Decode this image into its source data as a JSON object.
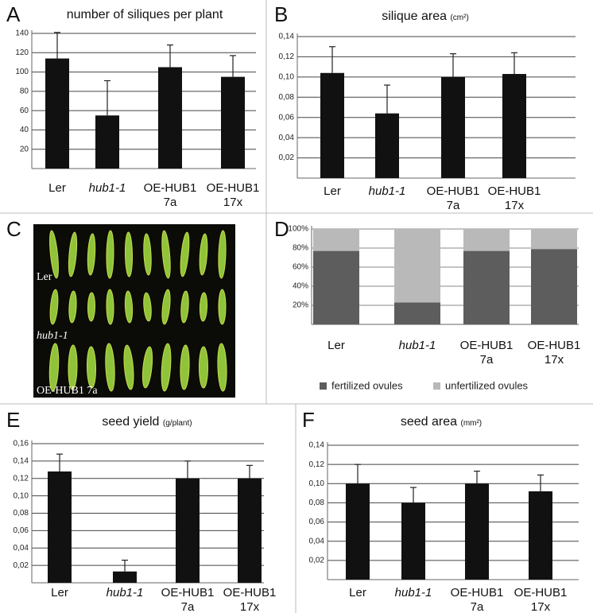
{
  "chart_data": [
    {
      "panel": "A",
      "type": "bar",
      "title": "number of siliques per plant",
      "categories": [
        "Ler",
        "hub1-1",
        "OE-HUB1 7a",
        "OE-HUB1 17x"
      ],
      "values": [
        114,
        55,
        105,
        95
      ],
      "errors": [
        27,
        36,
        23,
        22
      ],
      "color": "#111111",
      "ylim": [
        0,
        140
      ],
      "yticks": [
        20,
        40,
        60,
        80,
        100,
        120,
        140
      ],
      "grid": true
    },
    {
      "panel": "B",
      "type": "bar",
      "title": "silique area",
      "unit": "(cm²)",
      "categories": [
        "Ler",
        "hub1-1",
        "OE-HUB1 7a",
        "OE-HUB1 17x"
      ],
      "values": [
        0.104,
        0.064,
        0.1,
        0.103
      ],
      "errors": [
        0.026,
        0.028,
        0.023,
        0.021
      ],
      "color": "#111111",
      "ylim": [
        0,
        0.14
      ],
      "yticks": [
        {
          "value": 0.02,
          "label": "0,02"
        },
        {
          "value": 0.04,
          "label": "0,04"
        },
        {
          "value": 0.06,
          "label": "0,06"
        },
        {
          "value": 0.08,
          "label": "0,08"
        },
        {
          "value": 0.1,
          "label": "0,10"
        },
        {
          "value": 0.12,
          "label": "0,12"
        },
        {
          "value": 0.14,
          "label": "0,14"
        }
      ],
      "grid": true
    },
    {
      "panel": "D",
      "type": "stacked_bar",
      "categories": [
        "Ler",
        "hub1-1",
        "OE-HUB1 7a",
        "OE-HUB1 17x"
      ],
      "series": [
        {
          "name": "fertilized ovules",
          "color": "#5d5d5d",
          "values": [
            77,
            23,
            77,
            79
          ]
        },
        {
          "name": "unfertilized ovules",
          "color": "#b9b9b9",
          "values": [
            23,
            77,
            23,
            21
          ]
        }
      ],
      "ylim": [
        0,
        100
      ],
      "yticks": [
        {
          "value": 20,
          "label": "20%"
        },
        {
          "value": 40,
          "label": "40%"
        },
        {
          "value": 60,
          "label": "60%"
        },
        {
          "value": 80,
          "label": "80%"
        },
        {
          "value": 100,
          "label": "100%"
        }
      ],
      "grid": true,
      "legend": "bottom"
    },
    {
      "panel": "E",
      "type": "bar",
      "title": "seed yield",
      "unit": "(g/plant)",
      "categories": [
        "Ler",
        "hub1-1",
        "OE-HUB1 7a",
        "OE-HUB1 17x"
      ],
      "values": [
        0.128,
        0.013,
        0.12,
        0.12
      ],
      "errors": [
        0.02,
        0.013,
        0.02,
        0.015
      ],
      "color": "#111111",
      "ylim": [
        0,
        0.16
      ],
      "yticks": [
        {
          "value": 0.02,
          "label": "0,02"
        },
        {
          "value": 0.04,
          "label": "0,04"
        },
        {
          "value": 0.06,
          "label": "0,06"
        },
        {
          "value": 0.08,
          "label": "0,08"
        },
        {
          "value": 0.1,
          "label": "0,10"
        },
        {
          "value": 0.12,
          "label": "0,12"
        },
        {
          "value": 0.14,
          "label": "0,14"
        },
        {
          "value": 0.16,
          "label": "0,16"
        }
      ],
      "grid": true
    },
    {
      "panel": "F",
      "type": "bar",
      "title": "seed area",
      "unit": "(mm²)",
      "categories": [
        "Ler",
        "hub1-1",
        "OE-HUB1 7a",
        "OE-HUB1 17x"
      ],
      "values": [
        0.1,
        0.08,
        0.1,
        0.092
      ],
      "errors": [
        0.02,
        0.016,
        0.013,
        0.017
      ],
      "color": "#111111",
      "ylim": [
        0,
        0.14
      ],
      "yticks": [
        {
          "value": 0.02,
          "label": "0,02"
        },
        {
          "value": 0.04,
          "label": "0,04"
        },
        {
          "value": 0.06,
          "label": "0,06"
        },
        {
          "value": 0.08,
          "label": "0,08"
        },
        {
          "value": 0.1,
          "label": "0,10"
        },
        {
          "value": 0.12,
          "label": "0,12"
        },
        {
          "value": 0.14,
          "label": "0,14"
        }
      ],
      "grid": true
    }
  ],
  "photo": {
    "panel": "C",
    "captions": [
      "Ler",
      "hub1-1",
      "OE-HUB1 7a"
    ]
  }
}
